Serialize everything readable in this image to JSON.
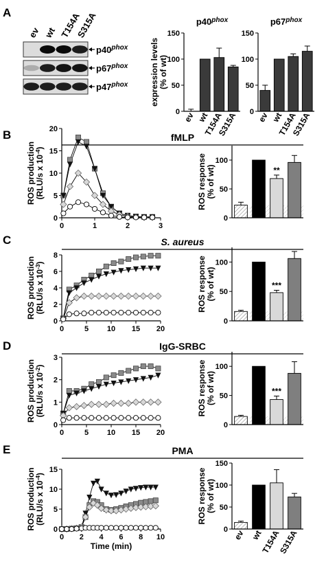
{
  "panel_letters": [
    "A",
    "B",
    "C",
    "D",
    "E"
  ],
  "blot": {
    "lane_labels": [
      "ev",
      "wt",
      "T154A",
      "S315A"
    ],
    "bands": [
      {
        "label_main": "p40",
        "label_sup": "phox",
        "intensity": [
          0,
          1,
          1,
          0.9
        ]
      },
      {
        "label_main": "p67",
        "label_sup": "phox",
        "intensity": [
          0.15,
          0.9,
          0.95,
          0.95
        ]
      },
      {
        "label_main": "p47",
        "label_sup": "phox",
        "intensity": [
          0.9,
          0.9,
          0.9,
          0.9
        ]
      }
    ]
  },
  "colors": {
    "wt": "#000000",
    "t154a": "#d9d9d9",
    "s315a": "#7f7f7f",
    "bar_dark": "#3a3a3a",
    "diamond": "#d8d8d8",
    "square": "#8a8a8a"
  },
  "chart_data": [
    {
      "id": "a-p40",
      "type": "bar",
      "title_main": "p40",
      "title_sup": "phox",
      "ylabel": [
        "expression levels",
        "(% of wt)"
      ],
      "categories": [
        "ev",
        "wt",
        "T154A",
        "S315A"
      ],
      "values": [
        0,
        100,
        103,
        85
      ],
      "errors": [
        4,
        0,
        18,
        3
      ],
      "ylim": [
        0,
        150
      ],
      "yticks": [
        "0",
        "50",
        "100",
        "150"
      ]
    },
    {
      "id": "a-p67",
      "type": "bar",
      "title_main": "p67",
      "title_sup": "phox",
      "categories": [
        "ev",
        "wt",
        "T154A",
        "S315A"
      ],
      "values": [
        40,
        100,
        105,
        115
      ],
      "errors": [
        10,
        0,
        5,
        10
      ],
      "ylim": [
        0,
        150
      ],
      "yticks": [
        "0",
        "50",
        "100",
        "150"
      ]
    },
    {
      "id": "b-line",
      "type": "line",
      "title": "fMLP",
      "ylabel": [
        "ROS production",
        "(RLU/s x 10",
        "-4",
        ")"
      ],
      "xlim": [
        0,
        3
      ],
      "ylim": [
        0,
        20
      ],
      "xticks": [
        "0",
        "1",
        "2",
        "3"
      ],
      "yticks": [
        "0",
        "5",
        "10",
        "15",
        "20"
      ],
      "series": [
        {
          "marker": "square",
          "x": [
            0.05,
            0.25,
            0.5,
            0.75,
            1,
            1.25,
            1.5,
            1.75,
            2,
            2.25,
            2.5,
            2.75
          ],
          "y": [
            5,
            13,
            18,
            17,
            11,
            5.5,
            2.5,
            1,
            0.5,
            0.3,
            0.2,
            0.2
          ]
        },
        {
          "marker": "triangle",
          "x": [
            0.05,
            0.25,
            0.5,
            0.75,
            1,
            1.25,
            1.5,
            1.75,
            2,
            2.25,
            2.5,
            2.75
          ],
          "y": [
            5,
            12,
            17,
            16,
            11,
            5,
            2.5,
            1,
            0.5,
            0.3,
            0.2,
            0.2
          ]
        },
        {
          "marker": "diamond",
          "x": [
            0.05,
            0.25,
            0.5,
            0.75,
            1,
            1.25,
            1.5,
            1.75,
            2,
            2.25,
            2.5,
            2.75
          ],
          "y": [
            3,
            7,
            10,
            8,
            5,
            3,
            1.5,
            0.7,
            0.3,
            0.2,
            0.1,
            0.1
          ]
        },
        {
          "marker": "circle",
          "x": [
            0.05,
            0.25,
            0.5,
            0.75,
            1,
            1.25,
            1.5,
            1.75,
            2,
            2.25,
            2.5,
            2.75
          ],
          "y": [
            1,
            2.5,
            3.5,
            3,
            2,
            1.2,
            0.5,
            0.2,
            0.1,
            0.1,
            0.1,
            0.1
          ]
        }
      ]
    },
    {
      "id": "b-bar",
      "type": "bar",
      "ylabel": [
        "ROS response",
        "(% of wt)"
      ],
      "categories": [
        "ev",
        "wt",
        "T154A",
        "S315A"
      ],
      "values": [
        22,
        100,
        68,
        96
      ],
      "errors": [
        5,
        0,
        6,
        12
      ],
      "annotation": {
        "index": 2,
        "text": "**"
      },
      "ev_band": 22,
      "ylim": [
        0,
        125
      ],
      "yticks": [
        "0",
        "50",
        "100"
      ]
    },
    {
      "id": "c-line",
      "type": "line",
      "title": "S. aureus",
      "ylabel": [
        "ROS production",
        "(RLU/s x 10",
        "-3",
        ")"
      ],
      "xlim": [
        0,
        20
      ],
      "ylim": [
        0,
        8
      ],
      "xticks": [
        "0",
        "5",
        "10",
        "15",
        "20"
      ],
      "yticks": [
        "0",
        "2",
        "4",
        "6",
        "8"
      ],
      "series": [
        {
          "marker": "square",
          "x": [
            0.3,
            1.5,
            3,
            4.5,
            6,
            7.5,
            9,
            10.5,
            12,
            13.5,
            15,
            16.5,
            18,
            19.5
          ],
          "y": [
            0.3,
            3.8,
            4.3,
            5,
            5.5,
            6,
            6.6,
            7,
            7.2,
            7.5,
            7.7,
            7.8,
            7.9,
            7.9
          ]
        },
        {
          "marker": "triangle",
          "x": [
            0.3,
            1.5,
            3,
            4.5,
            6,
            7.5,
            9,
            10.5,
            12,
            13.5,
            15,
            16.5,
            18,
            19.5
          ],
          "y": [
            0.3,
            3.4,
            4,
            4.6,
            5,
            5.4,
            5.7,
            5.9,
            6.1,
            6.2,
            6.3,
            6.4,
            6.4,
            6.4
          ]
        },
        {
          "marker": "diamond",
          "x": [
            0.3,
            1.5,
            3,
            4.5,
            6,
            7.5,
            9,
            10.5,
            12,
            13.5,
            15,
            16.5,
            18,
            19.5
          ],
          "y": [
            0.3,
            2.2,
            2.8,
            3,
            3,
            3,
            3,
            3,
            3,
            3,
            3,
            3,
            3,
            3
          ]
        },
        {
          "marker": "circle",
          "x": [
            0.3,
            1.5,
            3,
            4.5,
            6,
            7.5,
            9,
            10.5,
            12,
            13.5,
            15,
            16.5,
            18,
            19.5
          ],
          "y": [
            0.2,
            0.8,
            0.9,
            0.9,
            1,
            1,
            1,
            1,
            1,
            1,
            1,
            1,
            1,
            1
          ]
        }
      ]
    },
    {
      "id": "c-bar",
      "type": "bar",
      "ylabel": [
        "ROS response",
        "(% of wt)"
      ],
      "categories": [
        "ev",
        "wt",
        "T154A",
        "S315A"
      ],
      "values": [
        16,
        100,
        48,
        106
      ],
      "errors": [
        2,
        0,
        4,
        12
      ],
      "annotation": {
        "index": 2,
        "text": "***"
      },
      "ev_band": 16,
      "ylim": [
        0,
        125
      ],
      "yticks": [
        "0",
        "50",
        "100"
      ]
    },
    {
      "id": "d-line",
      "type": "line",
      "title": "IgG-SRBC",
      "ylabel": [
        "ROS production",
        "(RLU/s x 10",
        "-2",
        ")"
      ],
      "xlim": [
        0,
        20
      ],
      "ylim": [
        0,
        3
      ],
      "xticks": [
        "0",
        "5",
        "10",
        "15",
        "20"
      ],
      "yticks": [
        "0",
        "1",
        "2",
        "3"
      ],
      "series": [
        {
          "marker": "square",
          "x": [
            0.3,
            1.5,
            3,
            4.5,
            6,
            7.5,
            9,
            10.5,
            12,
            13.5,
            15,
            16.5,
            18,
            19.5
          ],
          "y": [
            0.5,
            1.5,
            1.5,
            1.6,
            1.8,
            1.9,
            2.1,
            2.2,
            2.3,
            2.4,
            2.5,
            2.6,
            2.6,
            2.5
          ]
        },
        {
          "marker": "triangle",
          "x": [
            0.3,
            1.5,
            3,
            4.5,
            6,
            7.5,
            9,
            10.5,
            12,
            13.5,
            15,
            16.5,
            18,
            19.5
          ],
          "y": [
            0.5,
            1.3,
            1.4,
            1.5,
            1.6,
            1.7,
            1.8,
            1.85,
            1.9,
            1.95,
            2,
            2.05,
            2.1,
            2.2
          ]
        },
        {
          "marker": "diamond",
          "x": [
            0.3,
            1.5,
            3,
            4.5,
            6,
            7.5,
            9,
            10.5,
            12,
            13.5,
            15,
            16.5,
            18,
            19.5
          ],
          "y": [
            0.4,
            0.75,
            0.8,
            0.85,
            0.9,
            0.9,
            0.9,
            0.95,
            0.95,
            0.95,
            1,
            1,
            1,
            1
          ]
        },
        {
          "marker": "circle",
          "x": [
            0.3,
            1.5,
            3,
            4.5,
            6,
            7.5,
            9,
            10.5,
            12,
            13.5,
            15,
            16.5,
            18,
            19.5
          ],
          "y": [
            0.2,
            0.3,
            0.3,
            0.3,
            0.3,
            0.3,
            0.3,
            0.3,
            0.3,
            0.3,
            0.3,
            0.3,
            0.3,
            0.3
          ]
        }
      ]
    },
    {
      "id": "d-bar",
      "type": "bar",
      "ylabel": [
        "ROS response",
        "(% of wt)"
      ],
      "categories": [
        "ev",
        "wt",
        "T154A",
        "S315A"
      ],
      "values": [
        14,
        100,
        43,
        88
      ],
      "errors": [
        2,
        0,
        6,
        20
      ],
      "annotation": {
        "index": 2,
        "text": "***"
      },
      "ev_band": 14,
      "ylim": [
        0,
        125
      ],
      "yticks": [
        "0",
        "50",
        "100"
      ]
    },
    {
      "id": "e-line",
      "type": "line",
      "title": "PMA",
      "xlabel": "Time (min)",
      "ylabel": [
        "ROS production",
        "(RLU/s x 10",
        "-4",
        ")"
      ],
      "xlim": [
        0,
        10
      ],
      "ylim": [
        0,
        15
      ],
      "xticks": [
        "0",
        "2",
        "4",
        "6",
        "8",
        "10"
      ],
      "yticks": [
        "0",
        "5",
        "10",
        "15"
      ],
      "series": [
        {
          "marker": "triangle",
          "x": [
            0,
            0.5,
            1,
            1.5,
            2,
            2.4,
            2.8,
            3.2,
            3.6,
            4,
            4.5,
            5,
            5.5,
            6,
            6.5,
            7,
            7.5,
            8,
            8.5,
            9,
            9.5
          ],
          "y": [
            0,
            0,
            0.1,
            0.2,
            0.5,
            4,
            8,
            11.5,
            12,
            10,
            9,
            8.5,
            8.6,
            9,
            9.5,
            10,
            10.2,
            10.4,
            10.5,
            10.5,
            10.5
          ]
        },
        {
          "marker": "square",
          "x": [
            0,
            0.5,
            1,
            1.5,
            2,
            2.4,
            2.8,
            3.2,
            3.6,
            4,
            4.5,
            5,
            5.5,
            6,
            6.5,
            7,
            7.5,
            8,
            8.5,
            9,
            9.5
          ],
          "y": [
            0,
            0,
            0.1,
            0.2,
            0.5,
            3,
            6,
            7,
            6.8,
            6,
            5,
            4.8,
            5,
            5.3,
            5.7,
            6,
            6.3,
            6.6,
            6.8,
            7,
            7.2
          ]
        },
        {
          "marker": "diamond",
          "x": [
            0,
            0.5,
            1,
            1.5,
            2,
            2.4,
            2.8,
            3.2,
            3.6,
            4,
            4.5,
            5,
            5.5,
            6,
            6.5,
            7,
            7.5,
            8,
            8.5,
            9,
            9.5
          ],
          "y": [
            0,
            0,
            0.1,
            0.2,
            0.5,
            3,
            5.5,
            6.5,
            6,
            5.2,
            4.8,
            4.6,
            4.6,
            4.8,
            5,
            5.2,
            5.4,
            5.5,
            5.6,
            5.7,
            5.8
          ]
        },
        {
          "marker": "circle",
          "x": [
            0,
            0.5,
            1,
            1.5,
            2,
            2.4,
            2.8,
            3.2,
            3.6,
            4,
            4.5,
            5,
            5.5,
            6,
            6.5,
            7,
            7.5,
            8,
            8.5,
            9,
            9.5
          ],
          "y": [
            0,
            0,
            0,
            0.1,
            0.2,
            0.3,
            0.3,
            0.3,
            0.3,
            0.3,
            0.3,
            0.3,
            0.3,
            0.3,
            0.3,
            0.3,
            0.3,
            0.3,
            0.3,
            0.3,
            0.3
          ]
        }
      ]
    },
    {
      "id": "e-bar",
      "type": "bar",
      "ylabel": [
        "ROS response",
        "(% of wt)"
      ],
      "categories": [
        "ev",
        "wt",
        "T154A",
        "S315A"
      ],
      "values": [
        15,
        100,
        105,
        73
      ],
      "errors": [
        3,
        0,
        30,
        8
      ],
      "ylim": [
        0,
        150
      ],
      "yticks": [
        "0",
        "50",
        "100",
        "150"
      ]
    }
  ]
}
